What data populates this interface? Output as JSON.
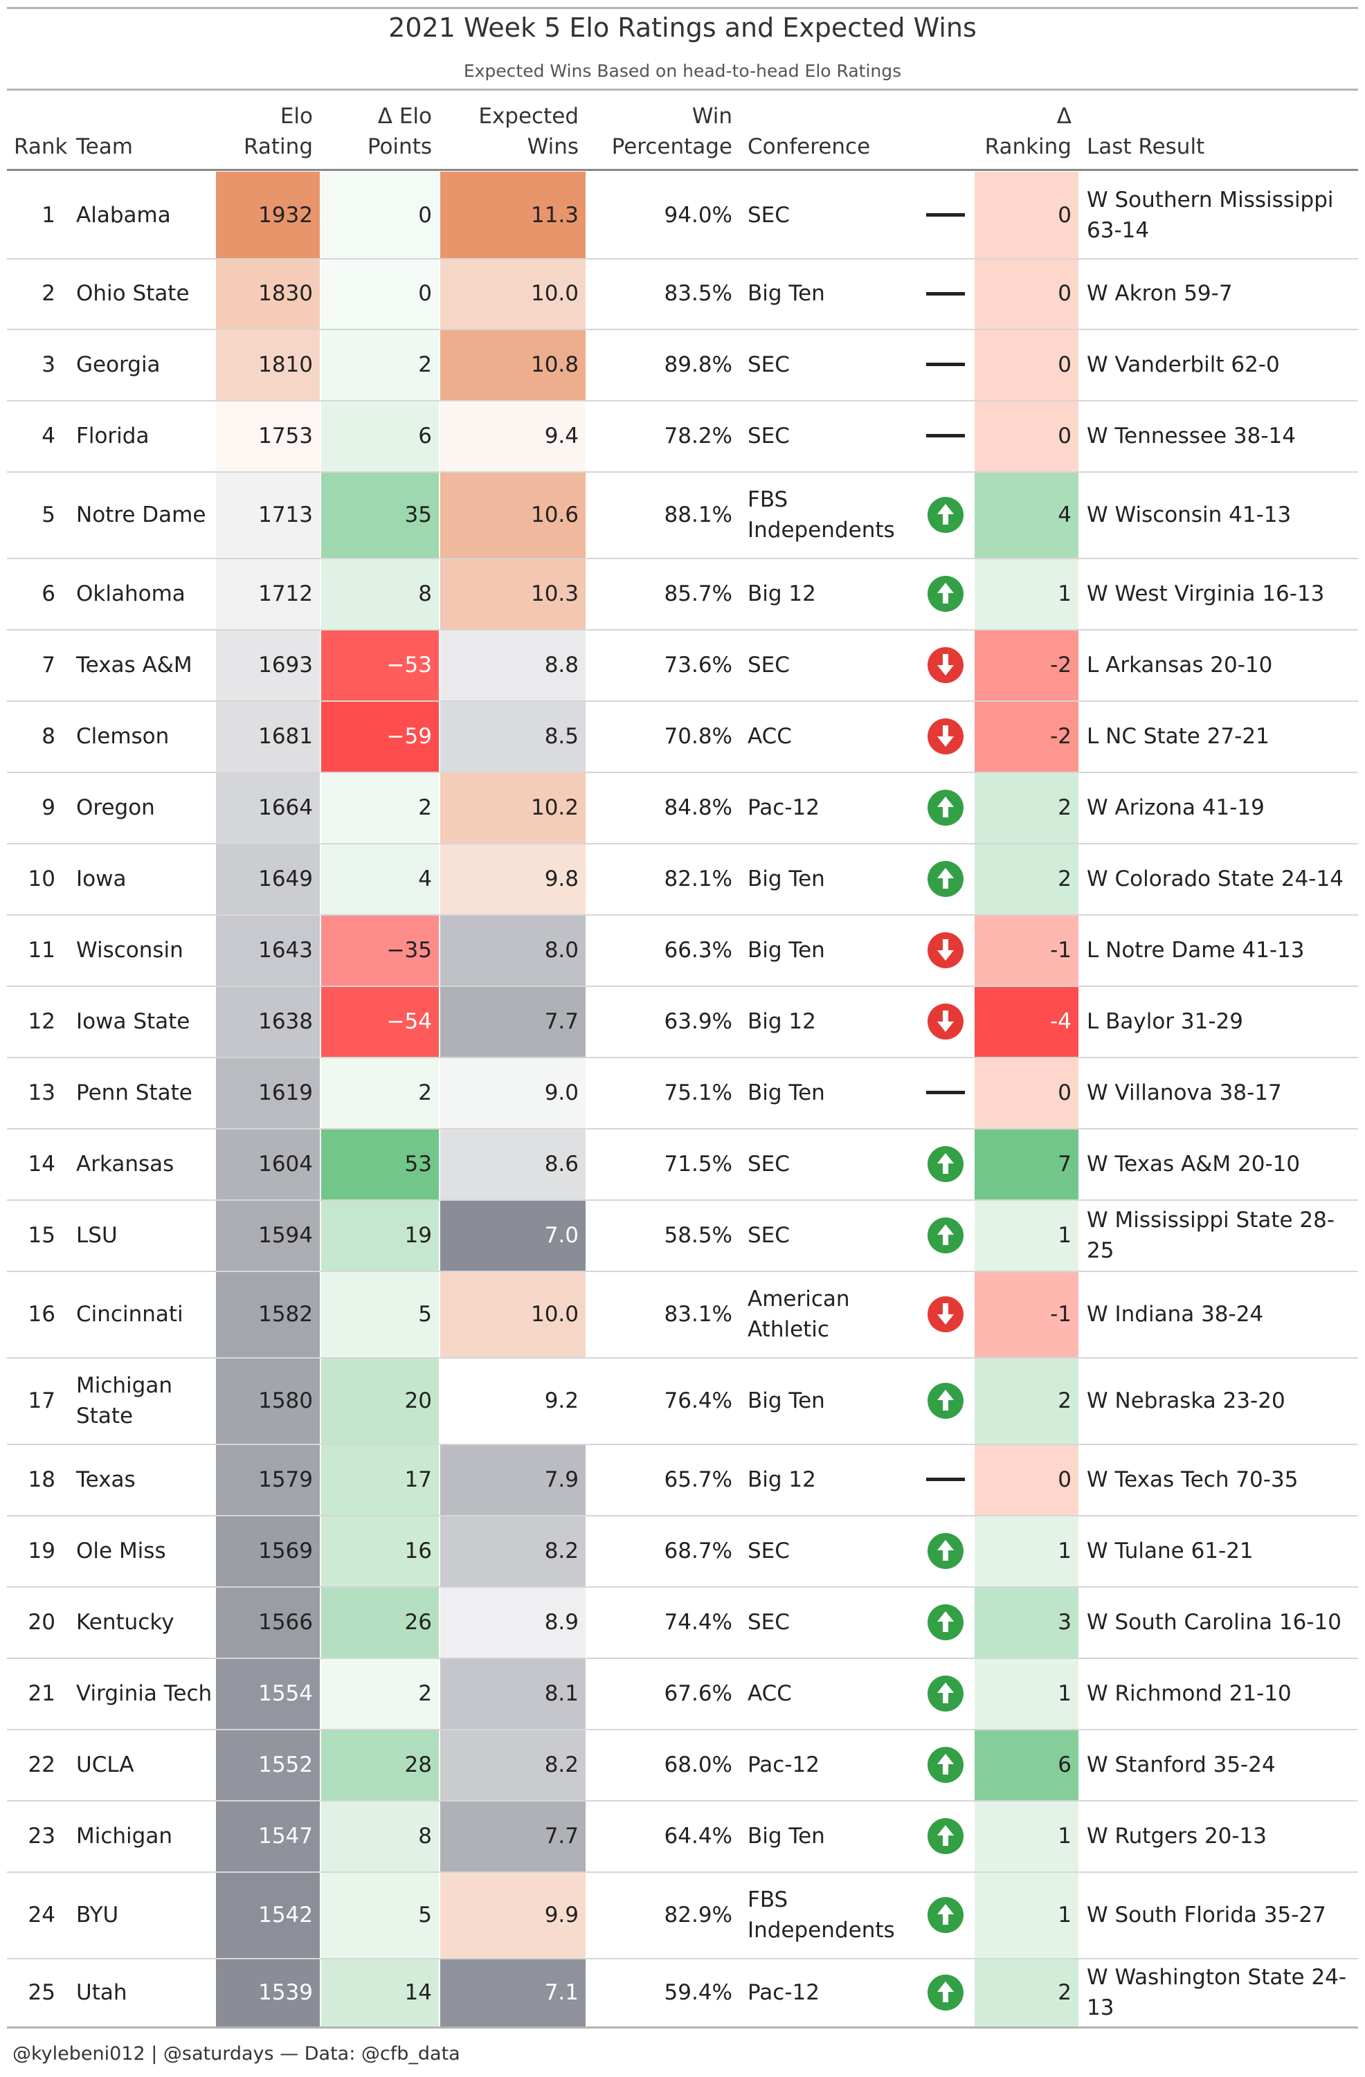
{
  "title": "2021 Week 5 Elo Ratings and Expected Wins",
  "subtitle": "Expected Wins Based on head-to-head Elo Ratings",
  "headers": {
    "rank": "Rank",
    "team": "Team",
    "elo_1": "Elo",
    "elo_2": "Rating",
    "delta_elo_1": "Δ Elo",
    "delta_elo_2": "Points",
    "expected_1": "Expected",
    "expected_2": "Wins",
    "win_1": "Win",
    "win_2": "Percentage",
    "conference": "Conference",
    "delta_rank_1": "Δ",
    "delta_rank_2": "Ranking",
    "last_result": "Last Result"
  },
  "footer": "@kylebeni012 | @saturdays — Data: @cfb_data",
  "colors": {
    "elo_high": "#e8956b",
    "elo_low": "#8a8d96",
    "positive": "#72c68a",
    "negative": "#ff4d4d",
    "neutral": "#ffffff",
    "up_icon": "#33a046",
    "down_icon": "#e53935"
  },
  "chart_data": {
    "type": "table",
    "columns": [
      "Rank",
      "Team",
      "Elo Rating",
      "Δ Elo Points",
      "Expected Wins",
      "Win Percentage",
      "Conference",
      "Direction",
      "Δ Ranking",
      "Last Result"
    ],
    "rows": [
      {
        "rank": "1",
        "team": "Alabama",
        "elo": "1932",
        "delo": "0",
        "xw": "11.3",
        "wp": "94.0%",
        "conf": "SEC",
        "dir": "flat",
        "drank": "0",
        "last": "W Southern Mississippi 63-14"
      },
      {
        "rank": "2",
        "team": "Ohio State",
        "elo": "1830",
        "delo": "0",
        "xw": "10.0",
        "wp": "83.5%",
        "conf": "Big Ten",
        "dir": "flat",
        "drank": "0",
        "last": "W Akron 59-7"
      },
      {
        "rank": "3",
        "team": "Georgia",
        "elo": "1810",
        "delo": "2",
        "xw": "10.8",
        "wp": "89.8%",
        "conf": "SEC",
        "dir": "flat",
        "drank": "0",
        "last": "W Vanderbilt 62-0"
      },
      {
        "rank": "4",
        "team": "Florida",
        "elo": "1753",
        "delo": "6",
        "xw": "9.4",
        "wp": "78.2%",
        "conf": "SEC",
        "dir": "flat",
        "drank": "0",
        "last": "W Tennessee 38-14"
      },
      {
        "rank": "5",
        "team": "Notre Dame",
        "elo": "1713",
        "delo": "35",
        "xw": "10.6",
        "wp": "88.1%",
        "conf": "FBS Independents",
        "dir": "up",
        "drank": "4",
        "last": "W Wisconsin 41-13"
      },
      {
        "rank": "6",
        "team": "Oklahoma",
        "elo": "1712",
        "delo": "8",
        "xw": "10.3",
        "wp": "85.7%",
        "conf": "Big 12",
        "dir": "up",
        "drank": "1",
        "last": "W West Virginia 16-13"
      },
      {
        "rank": "7",
        "team": "Texas A&M",
        "elo": "1693",
        "delo": "−53",
        "xw": "8.8",
        "wp": "73.6%",
        "conf": "SEC",
        "dir": "down",
        "drank": "-2",
        "last": "L Arkansas 20-10"
      },
      {
        "rank": "8",
        "team": "Clemson",
        "elo": "1681",
        "delo": "−59",
        "xw": "8.5",
        "wp": "70.8%",
        "conf": "ACC",
        "dir": "down",
        "drank": "-2",
        "last": "L NC State 27-21"
      },
      {
        "rank": "9",
        "team": "Oregon",
        "elo": "1664",
        "delo": "2",
        "xw": "10.2",
        "wp": "84.8%",
        "conf": "Pac-12",
        "dir": "up",
        "drank": "2",
        "last": "W Arizona 41-19"
      },
      {
        "rank": "10",
        "team": "Iowa",
        "elo": "1649",
        "delo": "4",
        "xw": "9.8",
        "wp": "82.1%",
        "conf": "Big Ten",
        "dir": "up",
        "drank": "2",
        "last": "W Colorado State 24-14"
      },
      {
        "rank": "11",
        "team": "Wisconsin",
        "elo": "1643",
        "delo": "−35",
        "xw": "8.0",
        "wp": "66.3%",
        "conf": "Big Ten",
        "dir": "down",
        "drank": "-1",
        "last": "L Notre Dame 41-13"
      },
      {
        "rank": "12",
        "team": "Iowa State",
        "elo": "1638",
        "delo": "−54",
        "xw": "7.7",
        "wp": "63.9%",
        "conf": "Big 12",
        "dir": "down",
        "drank": "-4",
        "last": "L Baylor 31-29"
      },
      {
        "rank": "13",
        "team": "Penn State",
        "elo": "1619",
        "delo": "2",
        "xw": "9.0",
        "wp": "75.1%",
        "conf": "Big Ten",
        "dir": "flat",
        "drank": "0",
        "last": "W Villanova 38-17"
      },
      {
        "rank": "14",
        "team": "Arkansas",
        "elo": "1604",
        "delo": "53",
        "xw": "8.6",
        "wp": "71.5%",
        "conf": "SEC",
        "dir": "up",
        "drank": "7",
        "last": "W Texas A&M 20-10"
      },
      {
        "rank": "15",
        "team": "LSU",
        "elo": "1594",
        "delo": "19",
        "xw": "7.0",
        "wp": "58.5%",
        "conf": "SEC",
        "dir": "up",
        "drank": "1",
        "last": "W Mississippi State 28-25"
      },
      {
        "rank": "16",
        "team": "Cincinnati",
        "elo": "1582",
        "delo": "5",
        "xw": "10.0",
        "wp": "83.1%",
        "conf": "American Athletic",
        "dir": "down",
        "drank": "-1",
        "last": "W Indiana 38-24"
      },
      {
        "rank": "17",
        "team": "Michigan State",
        "elo": "1580",
        "delo": "20",
        "xw": "9.2",
        "wp": "76.4%",
        "conf": "Big Ten",
        "dir": "up",
        "drank": "2",
        "last": "W Nebraska 23-20"
      },
      {
        "rank": "18",
        "team": "Texas",
        "elo": "1579",
        "delo": "17",
        "xw": "7.9",
        "wp": "65.7%",
        "conf": "Big 12",
        "dir": "flat",
        "drank": "0",
        "last": "W Texas Tech 70-35"
      },
      {
        "rank": "19",
        "team": "Ole Miss",
        "elo": "1569",
        "delo": "16",
        "xw": "8.2",
        "wp": "68.7%",
        "conf": "SEC",
        "dir": "up",
        "drank": "1",
        "last": "W Tulane 61-21"
      },
      {
        "rank": "20",
        "team": "Kentucky",
        "elo": "1566",
        "delo": "26",
        "xw": "8.9",
        "wp": "74.4%",
        "conf": "SEC",
        "dir": "up",
        "drank": "3",
        "last": "W South Carolina 16-10"
      },
      {
        "rank": "21",
        "team": "Virginia Tech",
        "elo": "1554",
        "delo": "2",
        "xw": "8.1",
        "wp": "67.6%",
        "conf": "ACC",
        "dir": "up",
        "drank": "1",
        "last": "W Richmond 21-10"
      },
      {
        "rank": "22",
        "team": "UCLA",
        "elo": "1552",
        "delo": "28",
        "xw": "8.2",
        "wp": "68.0%",
        "conf": "Pac-12",
        "dir": "up",
        "drank": "6",
        "last": "W Stanford 35-24"
      },
      {
        "rank": "23",
        "team": "Michigan",
        "elo": "1547",
        "delo": "8",
        "xw": "7.7",
        "wp": "64.4%",
        "conf": "Big Ten",
        "dir": "up",
        "drank": "1",
        "last": "W Rutgers 20-13"
      },
      {
        "rank": "24",
        "team": "BYU",
        "elo": "1542",
        "delo": "5",
        "xw": "9.9",
        "wp": "82.9%",
        "conf": "FBS Independents",
        "dir": "up",
        "drank": "1",
        "last": "W South Florida 35-27"
      },
      {
        "rank": "25",
        "team": "Utah",
        "elo": "1539",
        "delo": "14",
        "xw": "7.1",
        "wp": "59.4%",
        "conf": "Pac-12",
        "dir": "up",
        "drank": "2",
        "last": "W Washington State 24-13"
      }
    ]
  }
}
